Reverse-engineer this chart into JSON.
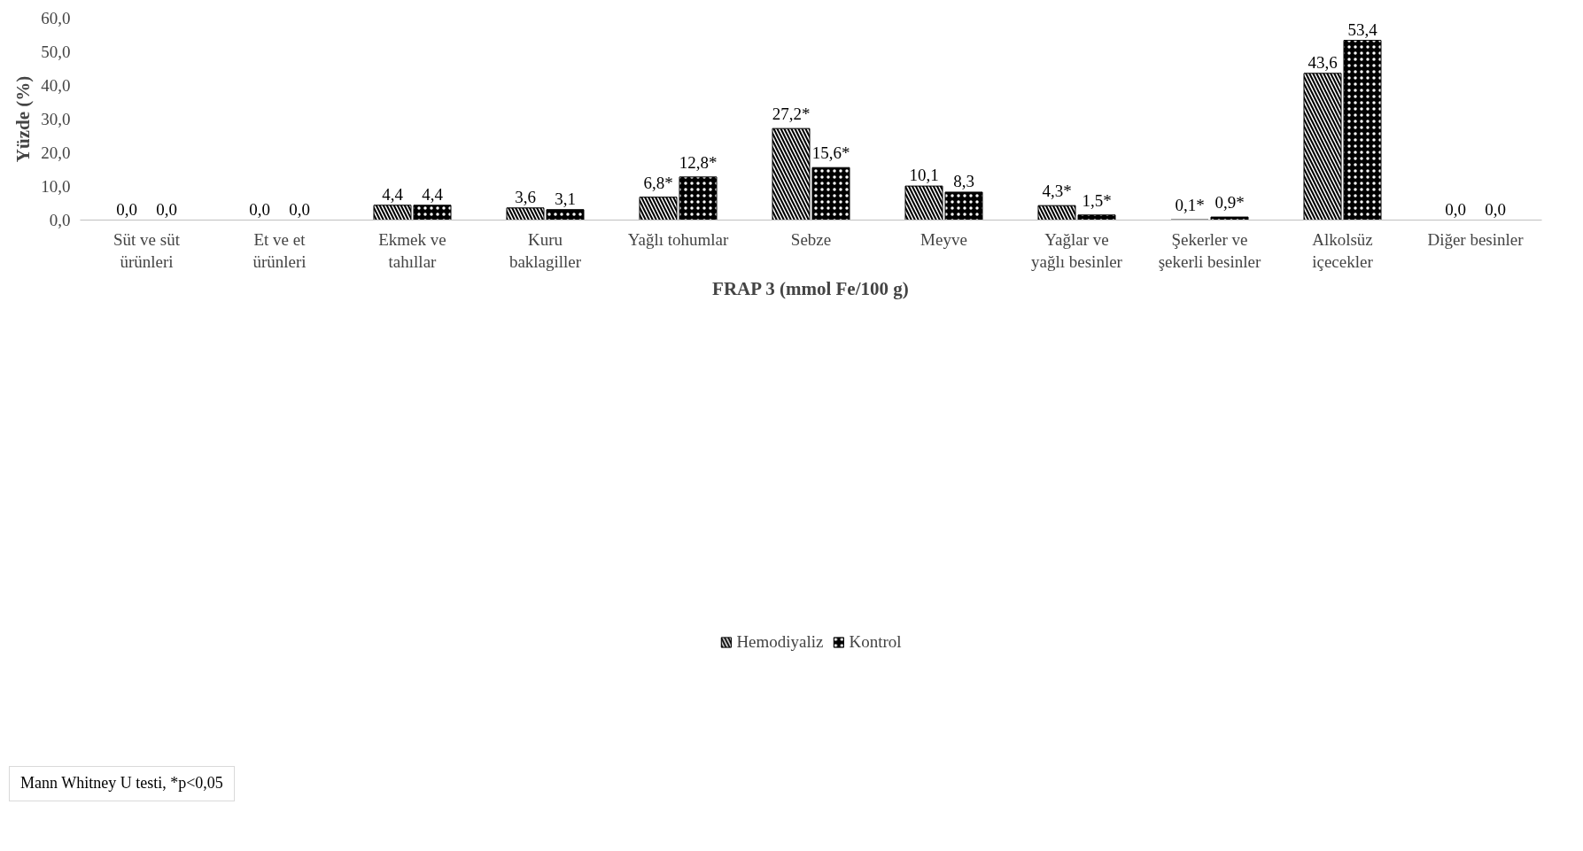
{
  "chart_data": {
    "type": "bar",
    "categories": [
      "Süt ve süt\nürünleri",
      "Et ve et\nürünleri",
      "Ekmek ve\ntahıllar",
      "Kuru\nbaklagiller",
      "Yağlı tohumlar",
      "Sebze",
      "Meyve",
      "Yağlar ve\nyağlı besinler",
      "Şekerler ve\nşekerli besinler",
      "Alkolsüz\niçecekler",
      "Diğer besinler"
    ],
    "series": [
      {
        "name": "Hemodiyaliz",
        "color": "#000000",
        "values": [
          0.0,
          0.0,
          4.4,
          3.6,
          6.8,
          27.2,
          10.1,
          4.3,
          0.1,
          43.6,
          0.0
        ],
        "value_labels": [
          "0,0",
          "0,0",
          "4,4",
          "3,6",
          "6,8*",
          "27,2*",
          "10,1",
          "4,3*",
          "0,1*",
          "43,6",
          "0,0"
        ]
      },
      {
        "name": "Kontrol",
        "color": "#000000",
        "values": [
          0.0,
          0.0,
          4.4,
          3.1,
          12.8,
          15.6,
          8.3,
          1.5,
          0.9,
          53.4,
          0.0
        ],
        "value_labels": [
          "0,0",
          "0,0",
          "4,4",
          "3,1",
          "12,8*",
          "15,6*",
          "8,3",
          "1,5*",
          "0,9*",
          "53,4",
          "0,0"
        ]
      }
    ],
    "xlabel": "FRAP 3 (mmol Fe/100 g)",
    "ylabel": "Yüzde (%)",
    "ylim": [
      0,
      60
    ],
    "yticks": [
      {
        "value": 0,
        "label": "0,0"
      },
      {
        "value": 10,
        "label": "10,0"
      },
      {
        "value": 20,
        "label": "20,0"
      },
      {
        "value": 30,
        "label": "30,0"
      },
      {
        "value": 40,
        "label": "40,0"
      },
      {
        "value": 50,
        "label": "50,0"
      },
      {
        "value": 60,
        "label": "60,0"
      }
    ],
    "annotations": [
      "Mann Whitney U testi, *p<0,05"
    ],
    "grid": false,
    "legend": "bottom"
  }
}
